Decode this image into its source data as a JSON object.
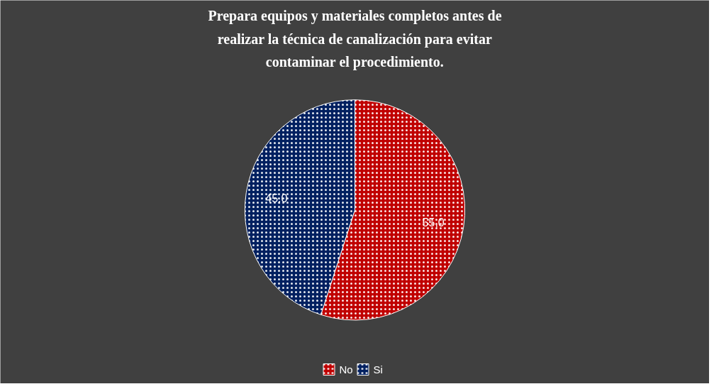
{
  "chart_data": {
    "type": "pie",
    "title": "Prepara equipos y materiales completos antes de realizar la técnica de canalización para evitar contaminar el procedimiento.",
    "categories": [
      "No",
      "Si"
    ],
    "values": [
      55,
      45
    ],
    "value_labels": [
      "55,0",
      "45,0"
    ],
    "colors": [
      "#c00000",
      "#002060"
    ],
    "legend": "bottom"
  }
}
